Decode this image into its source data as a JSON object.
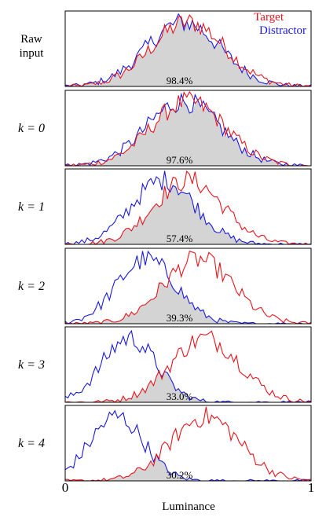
{
  "chart_data": {
    "type": "line",
    "xlabel": "Luminance",
    "xlim": [
      0,
      1
    ],
    "ylim": [
      0,
      1
    ],
    "x_ticks": [
      "0",
      "1"
    ],
    "legend": {
      "placement": "top-right",
      "entries": [
        "Target",
        "Distractor"
      ]
    },
    "colors": {
      "Target": "#e8141c",
      "Distractor": "#1a1adc",
      "overlap": "#d4d4d4"
    },
    "panels": [
      {
        "label": "Raw input",
        "overlap": "98.4%",
        "target_center": 0.5,
        "target_width": 0.15,
        "distractor_center": 0.48,
        "distractor_width": 0.15
      },
      {
        "label": "k = 0",
        "overlap": "97.6%",
        "target_center": 0.5,
        "target_width": 0.15,
        "distractor_center": 0.48,
        "distractor_width": 0.15
      },
      {
        "label": "k = 1",
        "overlap": "57.4%",
        "target_center": 0.5,
        "target_width": 0.14,
        "distractor_center": 0.4,
        "distractor_width": 0.13
      },
      {
        "label": "k = 2",
        "overlap": "39.3%",
        "target_center": 0.54,
        "target_width": 0.14,
        "distractor_center": 0.33,
        "distractor_width": 0.12
      },
      {
        "label": "k = 3",
        "overlap": "33.0%",
        "target_center": 0.57,
        "target_width": 0.14,
        "distractor_center": 0.26,
        "distractor_width": 0.11
      },
      {
        "label": "k = 4",
        "overlap": "30.2%",
        "target_center": 0.57,
        "target_width": 0.14,
        "distractor_center": 0.21,
        "distractor_width": 0.11
      }
    ]
  }
}
